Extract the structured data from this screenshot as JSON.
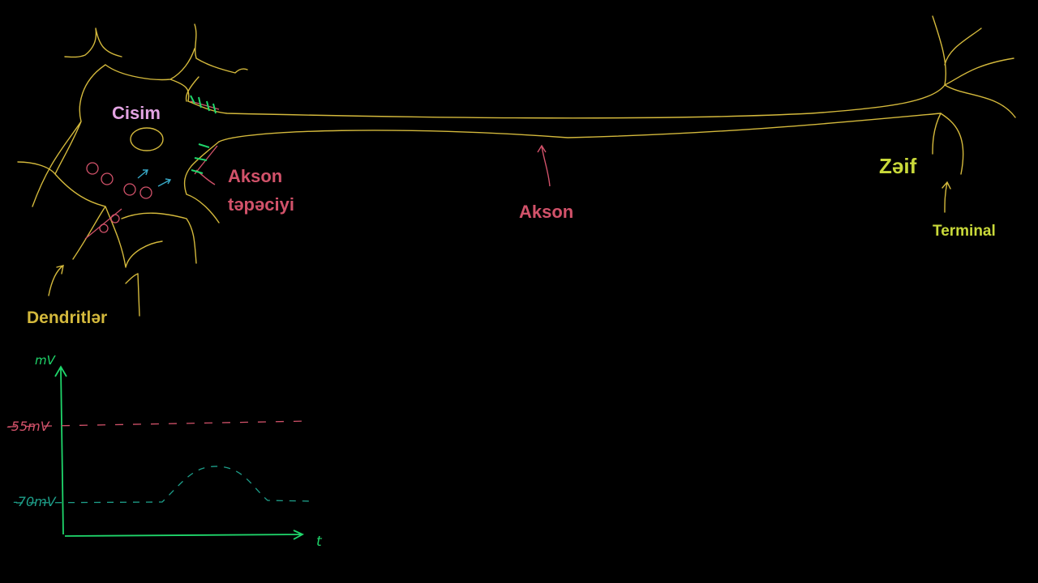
{
  "labels": {
    "soma": "Cisim",
    "hillock_line1": "Akson",
    "hillock_line2": "təpəciyi",
    "axon": "Akson",
    "weak": "Zəif",
    "terminal": "Terminal",
    "dendrites": "Dendritlər"
  },
  "graph": {
    "y_axis": "mV",
    "threshold": "-55mV",
    "resting": "-70mV",
    "x_axis": "t"
  }
}
